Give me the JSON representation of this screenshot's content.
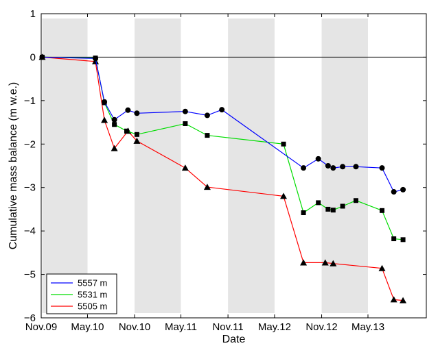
{
  "chart_data": {
    "type": "line",
    "xlabel": "Date",
    "ylabel": "Cumulative mass balance (m w.e.)",
    "xlim": [
      "2009-11-01",
      "2013-12-15"
    ],
    "ylim": [
      -6,
      1
    ],
    "y_ticks": [
      1,
      0,
      -1,
      -2,
      -3,
      -4,
      -5,
      -6
    ],
    "y_tick_labels": [
      "1",
      "0",
      "−1",
      "−2",
      "−3",
      "−4",
      "−5",
      "−6"
    ],
    "x_ticks": [
      {
        "date": "2009-11-01",
        "label": "Nov.09"
      },
      {
        "date": "2010-05-01",
        "label": "May.10"
      },
      {
        "date": "2010-11-01",
        "label": "Nov.10"
      },
      {
        "date": "2011-05-01",
        "label": "May.11"
      },
      {
        "date": "2011-11-01",
        "label": "Nov.11"
      },
      {
        "date": "2012-05-01",
        "label": "May.12"
      },
      {
        "date": "2012-11-01",
        "label": "Nov.12"
      },
      {
        "date": "2013-05-01",
        "label": "May.13"
      }
    ],
    "shaded_periods": [
      [
        "2009-11-05",
        "2010-05-01"
      ],
      [
        "2010-11-01",
        "2011-05-01"
      ],
      [
        "2011-11-01",
        "2012-05-01"
      ],
      [
        "2012-11-01",
        "2013-05-01"
      ]
    ],
    "grid": false,
    "zero_line": true,
    "legend_position": "bottom-left",
    "series": [
      {
        "name": "5557 m",
        "color": "#0000ff",
        "marker": "circle",
        "points": [
          [
            "2009-11-05",
            0.0
          ],
          [
            "2010-06-01",
            -0.03
          ],
          [
            "2010-07-06",
            -1.03
          ],
          [
            "2010-08-14",
            -1.44
          ],
          [
            "2010-10-06",
            -1.22
          ],
          [
            "2010-11-10",
            -1.29
          ],
          [
            "2011-05-18",
            -1.25
          ],
          [
            "2011-08-12",
            -1.34
          ],
          [
            "2011-10-08",
            -1.21
          ],
          [
            "2012-08-22",
            -2.55
          ],
          [
            "2012-10-19",
            -2.34
          ],
          [
            "2012-11-26",
            -2.5
          ],
          [
            "2012-12-16",
            -2.55
          ],
          [
            "2013-01-22",
            -2.52
          ],
          [
            "2013-03-15",
            -2.52
          ],
          [
            "2013-06-25",
            -2.55
          ],
          [
            "2013-08-10",
            -3.1
          ],
          [
            "2013-09-15",
            -3.05
          ]
        ]
      },
      {
        "name": "5531 m",
        "color": "#00dd00",
        "marker": "square",
        "points": [
          [
            "2009-11-05",
            0.0
          ],
          [
            "2010-06-01",
            -0.02
          ],
          [
            "2010-07-06",
            -1.05
          ],
          [
            "2010-08-14",
            -1.55
          ],
          [
            "2010-10-01",
            -1.7
          ],
          [
            "2010-11-10",
            -1.78
          ],
          [
            "2011-05-18",
            -1.53
          ],
          [
            "2011-08-12",
            -1.8
          ],
          [
            "2012-06-05",
            -2.0
          ],
          [
            "2012-08-22",
            -3.58
          ],
          [
            "2012-10-19",
            -3.35
          ],
          [
            "2012-11-26",
            -3.5
          ],
          [
            "2012-12-16",
            -3.52
          ],
          [
            "2013-01-22",
            -3.43
          ],
          [
            "2013-03-15",
            -3.3
          ],
          [
            "2013-06-25",
            -3.53
          ],
          [
            "2013-08-10",
            -4.18
          ],
          [
            "2013-09-15",
            -4.2
          ]
        ]
      },
      {
        "name": "5505 m",
        "color": "#ff0000",
        "marker": "triangle",
        "points": [
          [
            "2009-11-05",
            0.0
          ],
          [
            "2010-06-01",
            -0.1
          ],
          [
            "2010-07-06",
            -1.45
          ],
          [
            "2010-08-14",
            -2.1
          ],
          [
            "2010-10-06",
            -1.7
          ],
          [
            "2010-11-10",
            -1.93
          ],
          [
            "2011-05-18",
            -2.55
          ],
          [
            "2011-08-12",
            -2.99
          ],
          [
            "2012-06-05",
            -3.2
          ],
          [
            "2012-08-22",
            -4.73
          ],
          [
            "2012-11-15",
            -4.73
          ],
          [
            "2012-12-16",
            -4.75
          ],
          [
            "2013-06-25",
            -4.86
          ],
          [
            "2013-08-10",
            -5.58
          ],
          [
            "2013-09-15",
            -5.6
          ]
        ]
      }
    ]
  }
}
